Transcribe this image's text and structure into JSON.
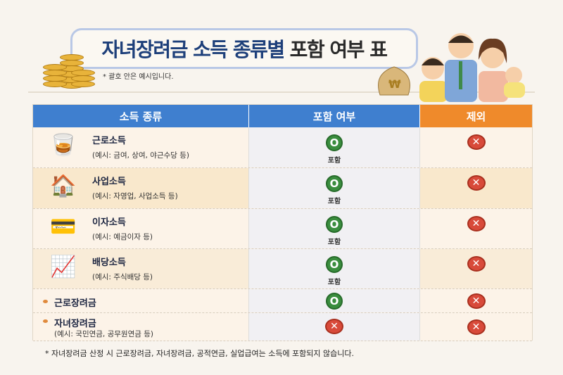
{
  "title": {
    "highlight": "자녀장려금 소득 종류별",
    "rest": "포함 여부 표"
  },
  "note": "* 괄호 안은 예시입니다.",
  "colors": {
    "header_blue": "#3f7fcf",
    "header_orange": "#ef8a2b",
    "include_green": "#3a8d3e",
    "exclude_red": "#d84a3a"
  },
  "table": {
    "headers": [
      "소득 종류",
      "포함 여부",
      "제외"
    ],
    "rows": [
      {
        "label": "근로소득",
        "example": "(예시: 금여, 상여, 야근수당 등)",
        "icon": "glasses-icon",
        "included": true,
        "include_text": "포함"
      },
      {
        "label": "사업소득",
        "example": "(예시: 자영업, 사업소득 등)",
        "icon": "house-icon",
        "included": true,
        "include_text": "포함"
      },
      {
        "label": "이자소득",
        "example": "(예시: 예금이자 등)",
        "icon": "coins-card-icon",
        "included": true,
        "include_text": "포함"
      },
      {
        "label": "배당소득",
        "example": "(예시: 주식배당 등)",
        "icon": "dividend-icon",
        "included": true,
        "include_text": "포함"
      },
      {
        "label": "근로장려금",
        "example": "",
        "icon": "bullet-icon",
        "included": true,
        "include_text": ""
      },
      {
        "label": "자녀장려금",
        "example": "(예시: 국민연금, 공무원연금 등)",
        "icon": "bullet-icon",
        "included": false,
        "include_text": ""
      }
    ],
    "o_mark": "O",
    "x_mark": "✕"
  },
  "footnote": "* 자녀장려금 산정 시 근로장려금, 자녀장려금, 공적연금, 실업급여는 소득에 포함되지 않습니다."
}
